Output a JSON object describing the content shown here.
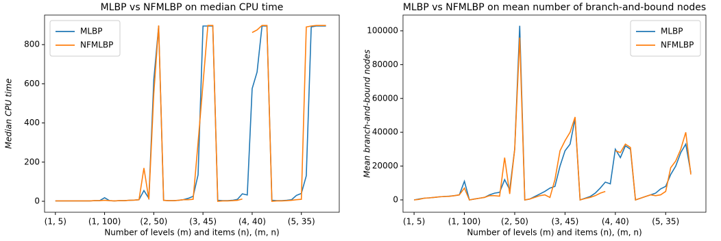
{
  "chart_data": [
    {
      "type": "line",
      "title": "MLBP vs NFMLBP on median CPU time",
      "xlabel": "Number of levels (m) and items (n), (m, n)",
      "ylabel": "Median CPU time",
      "x": [
        0,
        1,
        2,
        3,
        4,
        5,
        6,
        7,
        8,
        9,
        10,
        11,
        12,
        13,
        14,
        15,
        16,
        17,
        18,
        19,
        20,
        21,
        22,
        23,
        24,
        25,
        26,
        27,
        28,
        29,
        30,
        31,
        32,
        33,
        34,
        35,
        36,
        37,
        38,
        39,
        40,
        41,
        42,
        43,
        44,
        45,
        46,
        47,
        48,
        49,
        50,
        51,
        52,
        53,
        54,
        55
      ],
      "xlim": [
        -2.2,
        57.7
      ],
      "xticks": [
        {
          "value": 0,
          "label": "(1, 5)"
        },
        {
          "value": 10,
          "label": "(1, 100)"
        },
        {
          "value": 20,
          "label": "(2, 50)"
        },
        {
          "value": 30,
          "label": "(3, 45)"
        },
        {
          "value": 40,
          "label": "(4, 40)"
        },
        {
          "value": 50,
          "label": "(5, 35)"
        }
      ],
      "ylim": [
        -56,
        951
      ],
      "yticks": [
        0,
        200,
        400,
        600,
        800
      ],
      "legend": "upper left",
      "series": [
        {
          "name": "MLBP",
          "color": "#1f77b4",
          "values": [
            2,
            2,
            2,
            2,
            2,
            2,
            2,
            2,
            3,
            3,
            18,
            3,
            2,
            3,
            3,
            5,
            6,
            8,
            55,
            15,
            620,
            895,
            5,
            3,
            3,
            5,
            8,
            15,
            25,
            135,
            895,
            895,
            895,
            5,
            3,
            3,
            5,
            10,
            38,
            32,
            575,
            660,
            895,
            895,
            5,
            3,
            3,
            5,
            8,
            30,
            40,
            130,
            890,
            895,
            895,
            895
          ]
        },
        {
          "name": "NFMLBP",
          "color": "#ff7f0e",
          "values": [
            2,
            2,
            2,
            2,
            2,
            2,
            2,
            2,
            3,
            3,
            5,
            3,
            2,
            3,
            3,
            5,
            6,
            8,
            170,
            10,
            550,
            898,
            5,
            3,
            3,
            5,
            8,
            8,
            10,
            300,
            600,
            898,
            898,
            0,
            2,
            2,
            3,
            5,
            12,
            null,
            862,
            875,
            898,
            898,
            0,
            2,
            2,
            3,
            5,
            8,
            10,
            890,
            895,
            898,
            898,
            898
          ]
        }
      ]
    },
    {
      "type": "line",
      "title": "MLBP vs NFMLBP on mean number of branch-and-bound nodes",
      "xlabel": "Number of levels (m) and items (n), (m, n)",
      "ylabel": "Mean branch-and-bound nodes",
      "x": [
        0,
        1,
        2,
        3,
        4,
        5,
        6,
        7,
        8,
        9,
        10,
        11,
        12,
        13,
        14,
        15,
        16,
        17,
        18,
        19,
        20,
        21,
        22,
        23,
        24,
        25,
        26,
        27,
        28,
        29,
        30,
        31,
        32,
        33,
        34,
        35,
        36,
        37,
        38,
        39,
        40,
        41,
        42,
        43,
        44,
        45,
        46,
        47,
        48,
        49,
        50,
        51,
        52,
        53,
        54,
        55
      ],
      "xlim": [
        -2.2,
        58
      ],
      "xticks": [
        {
          "value": 0,
          "label": "(1, 5)"
        },
        {
          "value": 10,
          "label": "(1, 100)"
        },
        {
          "value": 20,
          "label": "(2, 50)"
        },
        {
          "value": 30,
          "label": "(3, 45)"
        },
        {
          "value": 40,
          "label": "(4, 40)"
        },
        {
          "value": 50,
          "label": "(5, 35)"
        }
      ],
      "ylim": [
        -7300,
        109300
      ],
      "yticks": [
        0,
        20000,
        40000,
        60000,
        80000,
        100000
      ],
      "legend": "upper right",
      "series": [
        {
          "name": "MLBP",
          "color": "#1f77b4",
          "values": [
            0,
            500,
            1000,
            1200,
            1500,
            1800,
            2000,
            2200,
            2500,
            3000,
            11000,
            0,
            500,
            1000,
            1500,
            3000,
            4000,
            4500,
            12000,
            6000,
            30000,
            103000,
            0,
            500,
            2000,
            3500,
            5000,
            7000,
            8000,
            20000,
            29000,
            33000,
            48000,
            0,
            1000,
            2000,
            4000,
            7000,
            10500,
            9500,
            30000,
            25000,
            32000,
            30000,
            0,
            1000,
            2000,
            3000,
            4000,
            6500,
            8000,
            15000,
            20000,
            28000,
            33000,
            16000
          ]
        },
        {
          "name": "NFMLBP",
          "color": "#ff7f0e",
          "values": [
            0,
            300,
            1000,
            1200,
            1500,
            1800,
            2000,
            2100,
            2500,
            3000,
            7000,
            0,
            500,
            1000,
            1500,
            2500,
            2500,
            2200,
            25000,
            3500,
            30000,
            96000,
            0,
            500,
            1500,
            2500,
            3000,
            1500,
            12000,
            29000,
            35000,
            40000,
            49000,
            0,
            800,
            1500,
            2500,
            4000,
            5000,
            null,
            29000,
            28000,
            33000,
            31000,
            0,
            1000,
            2000,
            3000,
            2500,
            3000,
            5000,
            19000,
            23000,
            30000,
            40000,
            15000
          ]
        }
      ]
    }
  ]
}
